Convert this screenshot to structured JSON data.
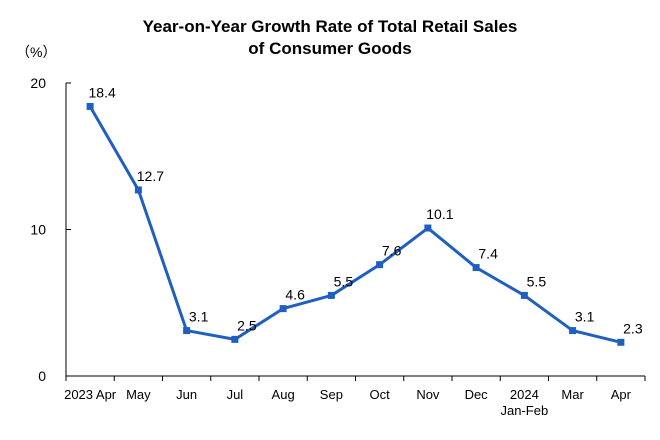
{
  "title_line1": "Year-on-Year Growth Rate of Total Retail Sales",
  "title_line2": "of Consumer Goods",
  "unit": "（%）",
  "colors": {
    "line": "#1f5fbf",
    "marker": "#1f5fbf",
    "axis": "#000000"
  },
  "chart_data": {
    "type": "line",
    "title": "Year-on-Year Growth Rate of Total Retail Sales of Consumer Goods",
    "ylabel": "（%）",
    "xlabel": "",
    "ylim": [
      0,
      20
    ],
    "yticks": [
      "0",
      "10",
      "20"
    ],
    "grid": false,
    "categories": [
      [
        "2023 Apr"
      ],
      [
        "May"
      ],
      [
        "Jun"
      ],
      [
        "Jul"
      ],
      [
        "Aug"
      ],
      [
        "Sep"
      ],
      [
        "Oct"
      ],
      [
        "Nov"
      ],
      [
        "Dec"
      ],
      [
        "2024",
        "Jan-Feb"
      ],
      [
        "Mar"
      ],
      [
        "Apr"
      ]
    ],
    "values": [
      18.4,
      12.7,
      3.1,
      2.5,
      4.6,
      5.5,
      7.6,
      10.1,
      7.4,
      5.5,
      3.1,
      2.3
    ],
    "data_labels": [
      "18.4",
      "12.7",
      "3.1",
      "2.5",
      "4.6",
      "5.5",
      "7.6",
      "10.1",
      "7.4",
      "5.5",
      "3.1",
      "2.3"
    ]
  }
}
